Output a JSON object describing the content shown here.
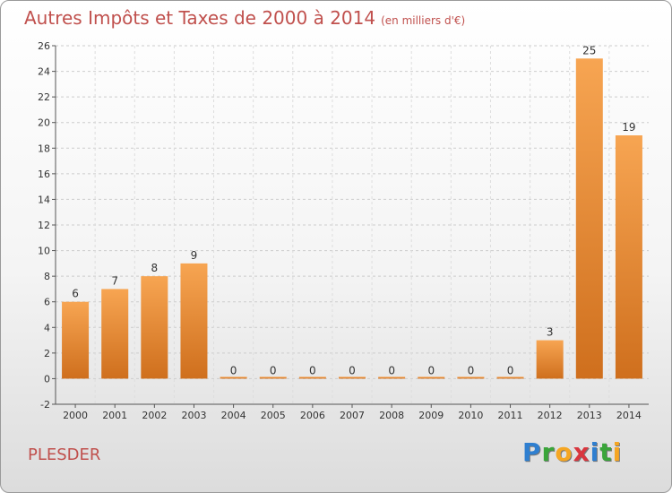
{
  "title": "Autres Impôts et Taxes de 2000 à 2014",
  "subtitle": "(en milliers d'€)",
  "commune": "PLESDER",
  "logo": {
    "letters": [
      "P",
      "r",
      "o",
      "x",
      "i",
      "t",
      "i"
    ],
    "colors": [
      "#2f7fd0",
      "#3aa53a",
      "#f5a623",
      "#d9363e",
      "#2f7fd0",
      "#3aa53a",
      "#f5a623"
    ]
  },
  "colors": {
    "bar_light": "#f7a552",
    "bar_dark": "#cf6f1d",
    "title": "#c0504d",
    "grid": "#cccccc"
  },
  "chart_data": {
    "type": "bar",
    "categories": [
      "2000",
      "2001",
      "2002",
      "2003",
      "2004",
      "2005",
      "2006",
      "2007",
      "2008",
      "2009",
      "2010",
      "2011",
      "2012",
      "2013",
      "2014"
    ],
    "values": [
      6,
      7,
      8,
      9,
      0,
      0,
      0,
      0,
      0,
      0,
      0,
      0,
      3,
      25,
      19
    ],
    "ylim": [
      -2,
      26
    ],
    "yticks": [
      -2,
      0,
      2,
      4,
      6,
      8,
      10,
      12,
      14,
      16,
      18,
      20,
      22,
      24,
      26
    ],
    "grid": "horizontal dashed",
    "legend": "none"
  }
}
